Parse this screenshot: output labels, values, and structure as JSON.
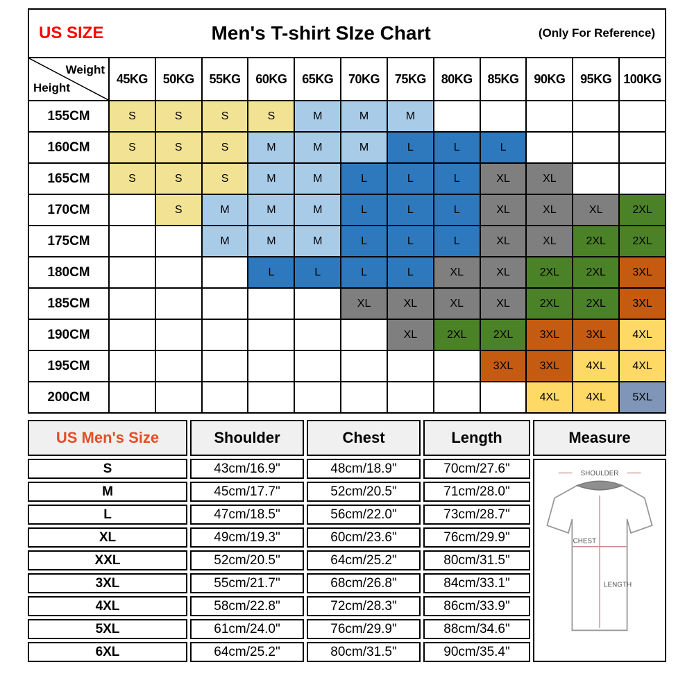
{
  "header": {
    "us_size": "US SIZE",
    "title": "Men's T-shirt SIze Chart",
    "reference": "(Only For Reference)"
  },
  "colors": {
    "us_size_red": "#FF0000",
    "mens_size_accent": "#E44D26",
    "header_bg": "#F0F0F0"
  },
  "size_colors": {
    "S": "#F2E394",
    "M": "#A8CBE8",
    "L": "#2E79BD",
    "XL": "#7F7F7F",
    "2XL": "#4C8227",
    "3XL": "#C55A11",
    "4XL": "#FFD966",
    "5XL": "#8096B8"
  },
  "diagram": {
    "shoulder": "SHOULDER",
    "chest": "CHEST",
    "length": "LENGTH"
  },
  "chart_data": [
    {
      "type": "table",
      "title": "Men's T-shirt SIze Chart",
      "corner": {
        "top": "Weight",
        "bottom": "Height"
      },
      "columns": [
        "45KG",
        "50KG",
        "55KG",
        "60KG",
        "65KG",
        "70KG",
        "75KG",
        "80KG",
        "85KG",
        "90KG",
        "95KG",
        "100KG"
      ],
      "rows": [
        {
          "height": "155CM",
          "cells": [
            "S",
            "S",
            "S",
            "S",
            "M",
            "M",
            "M",
            "",
            "",
            "",
            "",
            ""
          ]
        },
        {
          "height": "160CM",
          "cells": [
            "S",
            "S",
            "S",
            "M",
            "M",
            "M",
            "L",
            "L",
            "L",
            "",
            "",
            ""
          ]
        },
        {
          "height": "165CM",
          "cells": [
            "S",
            "S",
            "S",
            "M",
            "M",
            "L",
            "L",
            "L",
            "XL",
            "XL",
            "",
            ""
          ]
        },
        {
          "height": "170CM",
          "cells": [
            "",
            "S",
            "M",
            "M",
            "M",
            "L",
            "L",
            "L",
            "XL",
            "XL",
            "XL",
            "2XL"
          ]
        },
        {
          "height": "175CM",
          "cells": [
            "",
            "",
            "M",
            "M",
            "M",
            "L",
            "L",
            "L",
            "XL",
            "XL",
            "2XL",
            "2XL"
          ]
        },
        {
          "height": "180CM",
          "cells": [
            "",
            "",
            "",
            "L",
            "L",
            "L",
            "L",
            "XL",
            "XL",
            "2XL",
            "2XL",
            "3XL"
          ]
        },
        {
          "height": "185CM",
          "cells": [
            "",
            "",
            "",
            "",
            "",
            "XL",
            "XL",
            "XL",
            "XL",
            "2XL",
            "2XL",
            "3XL"
          ]
        },
        {
          "height": "190CM",
          "cells": [
            "",
            "",
            "",
            "",
            "",
            "",
            "XL",
            "2XL",
            "2XL",
            "3XL",
            "3XL",
            "4XL"
          ]
        },
        {
          "height": "195CM",
          "cells": [
            "",
            "",
            "",
            "",
            "",
            "",
            "",
            "",
            "3XL",
            "3XL",
            "4XL",
            "4XL"
          ]
        },
        {
          "height": "200CM",
          "cells": [
            "",
            "",
            "",
            "",
            "",
            "",
            "",
            "",
            "",
            "4XL",
            "4XL",
            "5XL"
          ]
        }
      ]
    },
    {
      "type": "table",
      "headers": [
        "US Men's Size",
        "Shoulder",
        "Chest",
        "Length",
        "Measure"
      ],
      "rows": [
        {
          "size": "S",
          "shoulder": "43cm/16.9\"",
          "chest": "48cm/18.9\"",
          "length": "70cm/27.6\""
        },
        {
          "size": "M",
          "shoulder": "45cm/17.7\"",
          "chest": "52cm/20.5\"",
          "length": "71cm/28.0\""
        },
        {
          "size": "L",
          "shoulder": "47cm/18.5\"",
          "chest": "56cm/22.0\"",
          "length": "73cm/28.7\""
        },
        {
          "size": "XL",
          "shoulder": "49cm/19.3\"",
          "chest": "60cm/23.6\"",
          "length": "76cm/29.9\""
        },
        {
          "size": "XXL",
          "shoulder": "52cm/20.5\"",
          "chest": "64cm/25.2\"",
          "length": "80cm/31.5\""
        },
        {
          "size": "3XL",
          "shoulder": "55cm/21.7\"",
          "chest": "68cm/26.8\"",
          "length": "84cm/33.1\""
        },
        {
          "size": "4XL",
          "shoulder": "58cm/22.8\"",
          "chest": "72cm/28.3\"",
          "length": "86cm/33.9\""
        },
        {
          "size": "5XL",
          "shoulder": "61cm/24.0\"",
          "chest": "76cm/29.9\"",
          "length": "88cm/34.6\""
        },
        {
          "size": "6XL",
          "shoulder": "64cm/25.2\"",
          "chest": "80cm/31.5\"",
          "length": "90cm/35.4\""
        }
      ]
    }
  ]
}
